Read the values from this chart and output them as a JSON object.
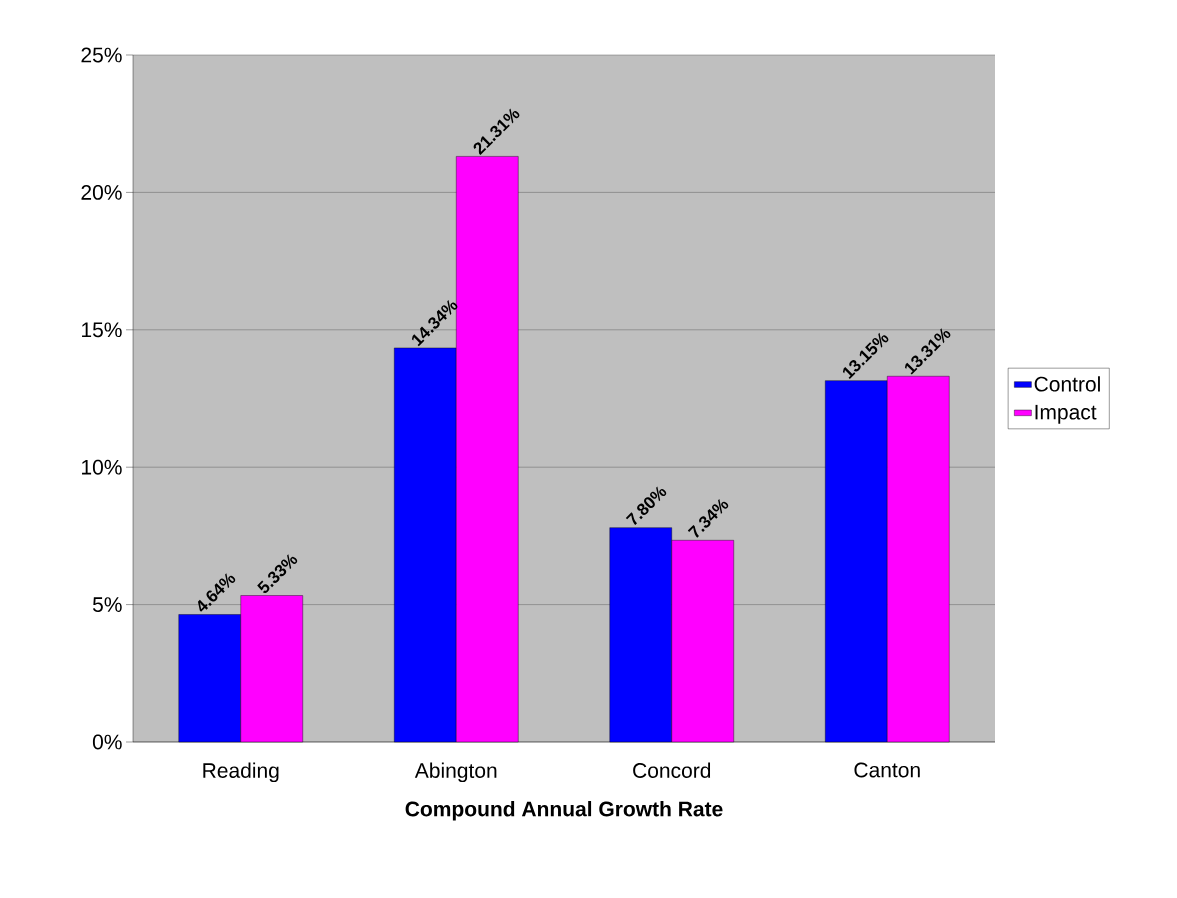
{
  "chart_data": {
    "type": "bar",
    "xlabel": "Compound Annual Growth Rate",
    "categories": [
      "Reading",
      "Abington",
      "Concord",
      "Canton"
    ],
    "series": [
      {
        "name": "Control",
        "color": "#0000ff",
        "values": [
          4.64,
          14.34,
          7.8,
          13.15
        ],
        "value_labels": [
          "4.64%",
          "14.34%",
          "7.80%",
          "13.15%"
        ]
      },
      {
        "name": "Impact",
        "color": "#ff00ff",
        "values": [
          5.33,
          21.31,
          7.34,
          13.31
        ],
        "value_labels": [
          "5.33%",
          "21.31%",
          "7.34%",
          "13.31%"
        ]
      }
    ],
    "ylim": [
      0,
      25
    ],
    "yticks": [
      {
        "value": 0,
        "label": "0%"
      },
      {
        "value": 5,
        "label": "5%"
      },
      {
        "value": 10,
        "label": "10%"
      },
      {
        "value": 15,
        "label": "15%"
      },
      {
        "value": 20,
        "label": "20%"
      },
      {
        "value": 25,
        "label": "25%"
      }
    ],
    "grid": "y",
    "legend": "right"
  }
}
